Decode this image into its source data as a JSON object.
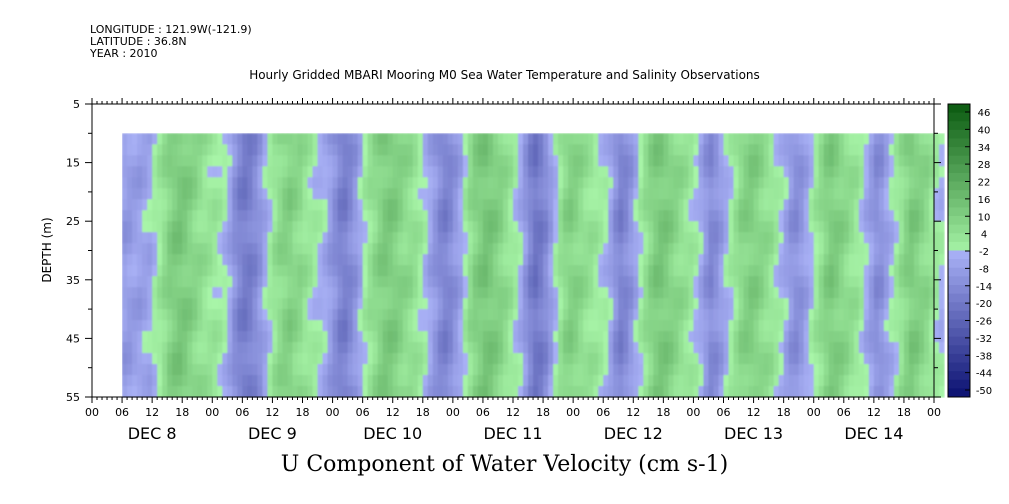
{
  "header": {
    "longitude": "LONGITUDE : 121.9W(-121.9)",
    "latitude": "LATITUDE : 36.8N",
    "year": "YEAR : 2010"
  },
  "chart_data": {
    "type": "heatmap",
    "title": "Hourly Gridded MBARI Mooring M0 Sea Water Temperature and Salinity Observations",
    "variable_label": "U Component of Water Velocity (cm s-1)",
    "ylabel": "DEPTH (m)",
    "ylim": [
      5,
      55
    ],
    "y_inverted": true,
    "y_ticks": [
      5,
      15,
      25,
      35,
      45,
      55
    ],
    "data_depth_range": [
      10,
      55
    ],
    "x_hour_ticks": [
      "00",
      "06",
      "12",
      "18",
      "00",
      "06",
      "12",
      "18",
      "00",
      "06",
      "12",
      "18",
      "00",
      "06",
      "12",
      "18",
      "00",
      "06",
      "12",
      "18",
      "00",
      "06",
      "12",
      "18",
      "00",
      "06",
      "12",
      "18",
      "00"
    ],
    "x_day_labels": [
      "DEC  8",
      "DEC  9",
      "DEC 10",
      "DEC 11",
      "DEC 12",
      "DEC 13",
      "DEC 14"
    ],
    "data_start_hour": 6,
    "total_hours": 168,
    "colorbar": {
      "labels": [
        "46",
        "40",
        "34",
        "28",
        "22",
        "16",
        "10",
        "4",
        "-2",
        "-8",
        "-14",
        "-20",
        "-26",
        "-32",
        "-38",
        "-44",
        "-50"
      ],
      "min": -50,
      "max": 52
    },
    "column_values_by_hour": [
      -6,
      -6,
      -5,
      -5,
      -4,
      -3,
      1,
      4,
      8,
      12,
      14,
      15,
      14,
      12,
      10,
      8,
      6,
      5,
      4,
      2,
      0,
      -4,
      -10,
      -14,
      -16,
      -15,
      -12,
      -8,
      -3,
      2,
      6,
      9,
      11,
      12,
      10,
      9,
      6,
      4,
      2,
      0,
      -2,
      -6,
      -10,
      -14,
      -15,
      -12,
      -8,
      -3,
      2,
      6,
      9,
      12,
      14,
      14,
      13,
      11,
      9,
      8,
      6,
      3,
      0,
      -4,
      -8,
      -12,
      -14,
      -12,
      -8,
      -4,
      2,
      8,
      12,
      14,
      16,
      15,
      13,
      11,
      8,
      5,
      2,
      -2,
      -8,
      -14,
      -18,
      -16,
      -12,
      -6,
      0,
      6,
      10,
      12,
      11,
      9,
      7,
      6,
      4,
      2,
      0,
      -4,
      -10,
      -14,
      -12,
      -8,
      -3,
      2,
      7,
      11,
      14,
      15,
      14,
      12,
      10,
      8,
      6,
      4,
      1,
      -3,
      -8,
      -12,
      -10,
      -6,
      -2,
      2,
      6,
      10,
      12,
      13,
      12,
      10,
      8,
      6,
      3,
      0,
      -4,
      -8,
      -10,
      -8,
      -4,
      0,
      4,
      8,
      12,
      14,
      13,
      11,
      9,
      7,
      5,
      2,
      -2,
      -6,
      -10,
      -9,
      -5,
      -1,
      3,
      7,
      11,
      14,
      13,
      11,
      9,
      6,
      3,
      0
    ]
  },
  "colors": {
    "neg_light": "#a8b0f5",
    "neg_dark": "#0a1070",
    "pos_light": "#a8f5a8",
    "pos_dark": "#0a5a10"
  }
}
